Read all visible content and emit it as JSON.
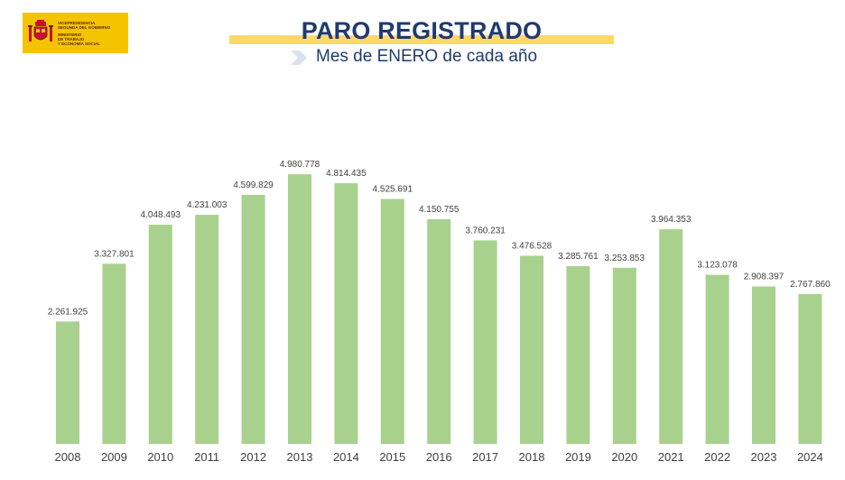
{
  "logo": {
    "lines": [
      "VICEPRESIDENCIA",
      "SEGUNDA DEL GOBIERNO",
      "MINISTERIO",
      "DE TRABAJO",
      "Y ECONOMÍA SOCIAL"
    ],
    "icon": "spain-coat-of-arms-icon",
    "color": "#f5c400"
  },
  "header": {
    "title": "PARO REGISTRADO",
    "subtitle": "Mes de ENERO de cada año",
    "title_color": "#1f3b6e",
    "highlight_color": "#ffd966"
  },
  "chart_data": {
    "type": "bar",
    "categories": [
      "2008",
      "2009",
      "2010",
      "2011",
      "2012",
      "2013",
      "2014",
      "2015",
      "2016",
      "2017",
      "2018",
      "2019",
      "2020",
      "2021",
      "2022",
      "2023",
      "2024"
    ],
    "values": [
      2261925,
      3327801,
      4048493,
      4231003,
      4599829,
      4980778,
      4814435,
      4525691,
      4150755,
      3760231,
      3476528,
      3285761,
      3253853,
      3964353,
      3123078,
      2908397,
      2767860
    ],
    "labels": [
      "2.261.925",
      "3.327.801",
      "4.048.493",
      "4.231.003",
      "4.599.829",
      "4.980.778",
      "4.814.435",
      "4.525.691",
      "4.150.755",
      "3.760.231",
      "3.476.528",
      "3.285.761",
      "3.253.853",
      "3.964.353",
      "3.123.078",
      "2.908.397",
      "2.767.860"
    ],
    "ylim": [
      0,
      5000000
    ],
    "grid": false,
    "bar_color": "#a9d18e",
    "label_color": "#404040"
  }
}
